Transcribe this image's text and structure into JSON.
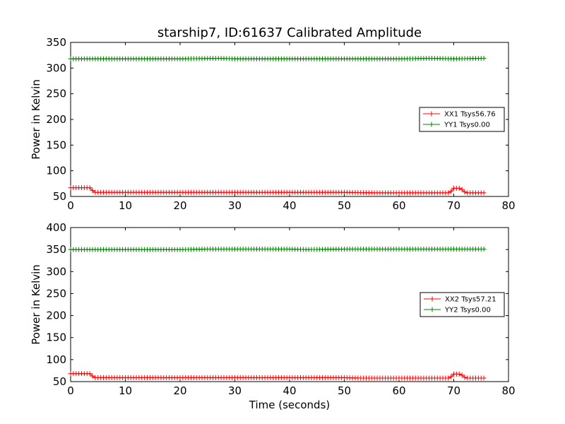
{
  "title": "starship7, ID:61637 Calibrated Amplitude",
  "chart_data": [
    {
      "type": "line",
      "ylabel": "Power in Kelvin",
      "xlabel": "",
      "xlim": [
        0,
        80
      ],
      "ylim": [
        50,
        350
      ],
      "xticks": [
        0,
        10,
        20,
        30,
        40,
        50,
        60,
        70,
        80
      ],
      "yticks": [
        50,
        100,
        150,
        200,
        250,
        300,
        350
      ],
      "legend_position": "right-middle",
      "series": [
        {
          "name": "XX1 Tsys56.76",
          "color": "#ff0000",
          "points": [
            [
              0,
              67
            ],
            [
              3.7,
              67
            ],
            [
              4.2,
              58
            ],
            [
              50,
              58
            ],
            [
              56,
              57
            ],
            [
              69,
              57
            ],
            [
              69.5,
              60
            ],
            [
              70,
              66
            ],
            [
              71.3,
              66
            ],
            [
              71.8,
              60
            ],
            [
              72.3,
              57
            ],
            [
              75.5,
              57
            ]
          ]
        },
        {
          "name": "YY1 Tsys0.00",
          "color": "#008000",
          "points": [
            [
              0,
              318
            ],
            [
              10,
              318
            ],
            [
              20,
              318
            ],
            [
              27,
              319
            ],
            [
              30,
              318
            ],
            [
              40,
              318
            ],
            [
              50,
              318
            ],
            [
              60,
              318
            ],
            [
              66,
              319
            ],
            [
              70,
              318
            ],
            [
              75.5,
              319
            ]
          ]
        }
      ]
    },
    {
      "type": "line",
      "ylabel": "Power in Kelvin",
      "xlabel": "Time (seconds)",
      "xlim": [
        0,
        80
      ],
      "ylim": [
        50,
        400
      ],
      "xticks": [
        0,
        10,
        20,
        30,
        40,
        50,
        60,
        70,
        80
      ],
      "yticks": [
        50,
        100,
        150,
        200,
        250,
        300,
        350,
        400
      ],
      "legend_position": "right-middle",
      "series": [
        {
          "name": "XX2 Tsys57.21",
          "color": "#ff0000",
          "points": [
            [
              0,
              68
            ],
            [
              3.7,
              68
            ],
            [
              4.2,
              59
            ],
            [
              50,
              59
            ],
            [
              53,
              58
            ],
            [
              69,
              58
            ],
            [
              69.5,
              61
            ],
            [
              70,
              67
            ],
            [
              71.3,
              67
            ],
            [
              71.8,
              61
            ],
            [
              72.3,
              58
            ],
            [
              75.5,
              58
            ]
          ]
        },
        {
          "name": "YY2 Tsys0.00",
          "color": "#008000",
          "points": [
            [
              0,
              350
            ],
            [
              10,
              350
            ],
            [
              20,
              350
            ],
            [
              25,
              351
            ],
            [
              30,
              351
            ],
            [
              40,
              351
            ],
            [
              43,
              350
            ],
            [
              50,
              351
            ],
            [
              60,
              351
            ],
            [
              70,
              351
            ],
            [
              75.5,
              351
            ]
          ]
        }
      ]
    }
  ]
}
